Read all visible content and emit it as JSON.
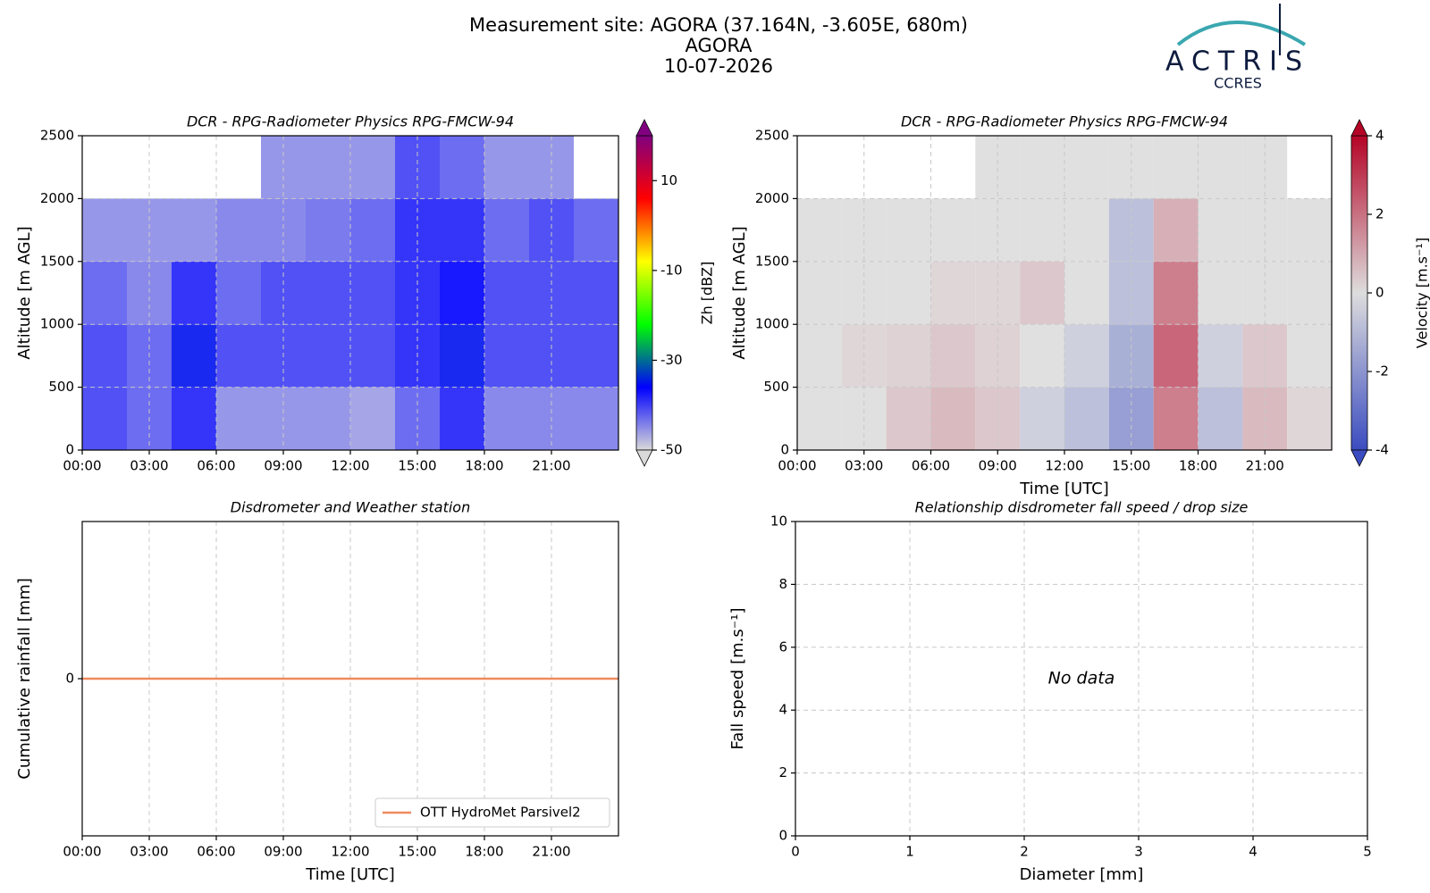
{
  "header": {
    "lines": [
      "Measurement site: AGORA (37.164N, -3.605E, 680m)",
      "AGORA",
      "10-07-2026"
    ],
    "logo": "ACTRIS",
    "logo_sub": "CCRES"
  },
  "chart_data": [
    {
      "type": "heatmap",
      "title": "DCR - RPG-Radiometer Physics RPG-FMCW-94",
      "ylabel": "Altitude [m AGL]",
      "xlim": [
        0,
        24
      ],
      "xticks": [
        {
          "value": 0,
          "label": "00:00"
        },
        {
          "value": 3,
          "label": "03:00"
        },
        {
          "value": 6,
          "label": "06:00"
        },
        {
          "value": 9,
          "label": "09:00"
        },
        {
          "value": 12,
          "label": "12:00"
        },
        {
          "value": 15,
          "label": "15:00"
        },
        {
          "value": 18,
          "label": "18:00"
        },
        {
          "value": 21,
          "label": "21:00"
        }
      ],
      "ylim": [
        0,
        2500
      ],
      "yticks": [
        0,
        500,
        1000,
        1500,
        2000,
        2500
      ],
      "grid": true,
      "x_bins": [
        0,
        2,
        4,
        6,
        8,
        10,
        12,
        14,
        16,
        18,
        20,
        22,
        24
      ],
      "y_bins": [
        0,
        500,
        1000,
        1500,
        2000,
        2500
      ],
      "z": [
        [
          -40,
          -42,
          -38,
          -45,
          -45,
          -45,
          -46,
          -42,
          -38,
          -44,
          -44,
          -44
        ],
        [
          -40,
          -42,
          -35,
          -40,
          -40,
          -40,
          -40,
          -38,
          -35,
          -40,
          -40,
          -40
        ],
        [
          -42,
          -44,
          -38,
          -42,
          -40,
          -40,
          -40,
          -38,
          -36,
          -40,
          -40,
          -40
        ],
        [
          -45,
          -45,
          -45,
          -44,
          -44,
          -43,
          -42,
          -38,
          -38,
          -42,
          -40,
          -42
        ],
        [
          null,
          null,
          null,
          null,
          -45,
          -45,
          -45,
          -40,
          -42,
          -45,
          -45,
          null
        ]
      ],
      "colorbar": {
        "label": "Zh [dBZ]",
        "lim": [
          -50,
          20
        ],
        "ticks": [
          -50,
          -30,
          -10,
          10
        ],
        "cmap": [
          "#d9d9d9",
          "#0000ff",
          "#00ff00",
          "#ffff00",
          "#ff0000",
          "#800080"
        ]
      }
    },
    {
      "type": "heatmap",
      "title": "DCR - RPG-Radiometer Physics RPG-FMCW-94",
      "xlabel": "Time [UTC]",
      "ylabel": "Altitude [m AGL]",
      "xlim": [
        0,
        24
      ],
      "xticks": [
        {
          "value": 0,
          "label": "00:00"
        },
        {
          "value": 3,
          "label": "03:00"
        },
        {
          "value": 6,
          "label": "06:00"
        },
        {
          "value": 9,
          "label": "09:00"
        },
        {
          "value": 12,
          "label": "12:00"
        },
        {
          "value": 15,
          "label": "15:00"
        },
        {
          "value": 18,
          "label": "18:00"
        },
        {
          "value": 21,
          "label": "21:00"
        }
      ],
      "ylim": [
        0,
        2500
      ],
      "yticks": [
        0,
        500,
        1000,
        1500,
        2000,
        2500
      ],
      "grid": true,
      "x_bins": [
        0,
        2,
        4,
        6,
        8,
        10,
        12,
        14,
        16,
        18,
        20,
        22,
        24
      ],
      "y_bins": [
        0,
        500,
        1000,
        1500,
        2000,
        2500
      ],
      "z": [
        [
          0,
          0,
          0.5,
          0.8,
          0.5,
          -0.5,
          -1,
          -2,
          2,
          -1,
          0.8,
          0.2
        ],
        [
          0,
          0.2,
          0.3,
          0.5,
          0.3,
          0,
          -0.5,
          -1.5,
          2.5,
          -0.5,
          0.5,
          0
        ],
        [
          0,
          0,
          0,
          0.2,
          0.2,
          0.5,
          0,
          -1,
          2,
          0,
          0,
          0
        ],
        [
          0,
          0,
          0,
          0,
          0,
          0,
          0,
          -1,
          1,
          0,
          0,
          0
        ],
        [
          null,
          null,
          null,
          null,
          0,
          0,
          0,
          0,
          0,
          0,
          0,
          null
        ]
      ],
      "colorbar": {
        "label": "Velocity [m.s⁻¹]",
        "lim": [
          -4,
          4
        ],
        "ticks": [
          -4,
          -2,
          0,
          2,
          4
        ],
        "cmap": [
          "#3b4cc0",
          "#dddddd",
          "#b40426"
        ]
      }
    },
    {
      "type": "line",
      "title": "Disdrometer and Weather station",
      "xlabel": "Time [UTC]",
      "ylabel": "Cumulative rainfall [mm]",
      "xlim": [
        0,
        24
      ],
      "xticks": [
        {
          "value": 0,
          "label": "00:00"
        },
        {
          "value": 3,
          "label": "03:00"
        },
        {
          "value": 6,
          "label": "06:00"
        },
        {
          "value": 9,
          "label": "09:00"
        },
        {
          "value": 12,
          "label": "12:00"
        },
        {
          "value": 15,
          "label": "15:00"
        },
        {
          "value": 18,
          "label": "18:00"
        },
        {
          "value": 21,
          "label": "21:00"
        }
      ],
      "ylim": [
        -1,
        1
      ],
      "yticks": [
        0
      ],
      "grid": true,
      "legend": "lower right",
      "x": [
        0,
        24
      ],
      "series": [
        {
          "name": "OTT HydroMet Parsivel2",
          "color": "#ef8a5e",
          "values": [
            0,
            0
          ]
        }
      ]
    },
    {
      "type": "scatter",
      "title": "Relationship disdrometer fall speed / drop size",
      "xlabel": "Diameter [mm]",
      "ylabel": "Fall speed [m.s⁻¹]",
      "xlim": [
        0,
        5
      ],
      "xticks": [
        0,
        1,
        2,
        3,
        4,
        5
      ],
      "ylim": [
        0,
        10
      ],
      "yticks": [
        0,
        2,
        4,
        6,
        8,
        10
      ],
      "grid": true,
      "x": [],
      "values": [],
      "annotation": "No data"
    }
  ]
}
